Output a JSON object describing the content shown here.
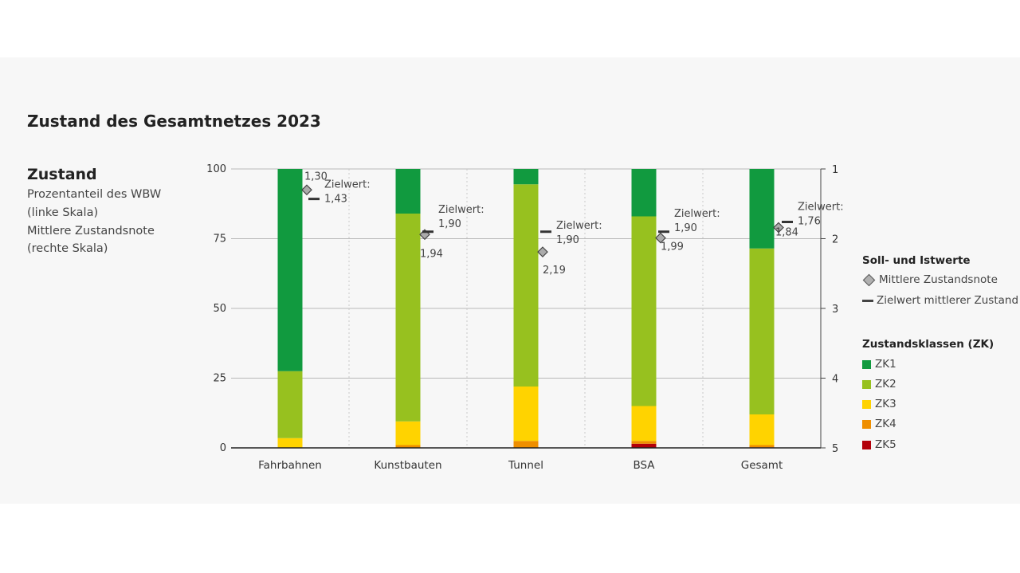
{
  "title": "Zustand des Gesamtnetzes 2023",
  "side": {
    "heading": "Zustand",
    "lines": [
      "Prozentanteil des WBW",
      "(linke Skala)",
      "Mittlere Zustandsnote",
      "(rechte Skala)"
    ]
  },
  "legend": {
    "soll_title": "Soll- und Istwerte",
    "mean_label": "Mittlere Zustandsnote",
    "target_label": "Zielwert mittlerer Zustand",
    "zk_title": "Zustandsklassen (ZK)"
  },
  "colors": {
    "ZK1": "#119a3f",
    "ZK2": "#97c11f",
    "ZK3": "#ffd300",
    "ZK4": "#ef8f00",
    "ZK5": "#b3000a"
  },
  "chart_data": {
    "type": "bar",
    "stacked": true,
    "categories": [
      "Fahrbahnen",
      "Kunstbauten",
      "Tunnel",
      "BSA",
      "Gesamt"
    ],
    "series": [
      {
        "name": "ZK1",
        "values": [
          72.5,
          16,
          5.5,
          17,
          28.5
        ]
      },
      {
        "name": "ZK2",
        "values": [
          24,
          74.5,
          72.5,
          68,
          59.5
        ]
      },
      {
        "name": "ZK3",
        "values": [
          3.5,
          8.5,
          19.5,
          12.5,
          11
        ]
      },
      {
        "name": "ZK4",
        "values": [
          0,
          1,
          2.5,
          1,
          0.8
        ]
      },
      {
        "name": "ZK5",
        "values": [
          0,
          0,
          0,
          1.5,
          0.2
        ]
      }
    ],
    "mean_grade": {
      "name": "Mittlere Zustandsnote",
      "values": [
        1.3,
        1.94,
        2.19,
        1.99,
        1.84
      ],
      "labels": [
        "1,30",
        "1,94",
        "2,19",
        "1,99",
        "1,84"
      ]
    },
    "target_grade": {
      "name": "Zielwert mittlerer Zustand",
      "values": [
        1.43,
        1.9,
        1.9,
        1.9,
        1.76
      ],
      "labels": [
        "1,43",
        "1,90",
        "1,90",
        "1,90",
        "1,76"
      ]
    },
    "target_prefix": "Zielwert:",
    "y_left": {
      "ticks": [
        0,
        25,
        50,
        75,
        100
      ],
      "ylim": [
        0,
        100
      ]
    },
    "y_right": {
      "ticks": [
        1,
        2,
        3,
        4,
        5
      ],
      "ylim": [
        1,
        5
      ],
      "inverted": true
    },
    "grid": true
  }
}
